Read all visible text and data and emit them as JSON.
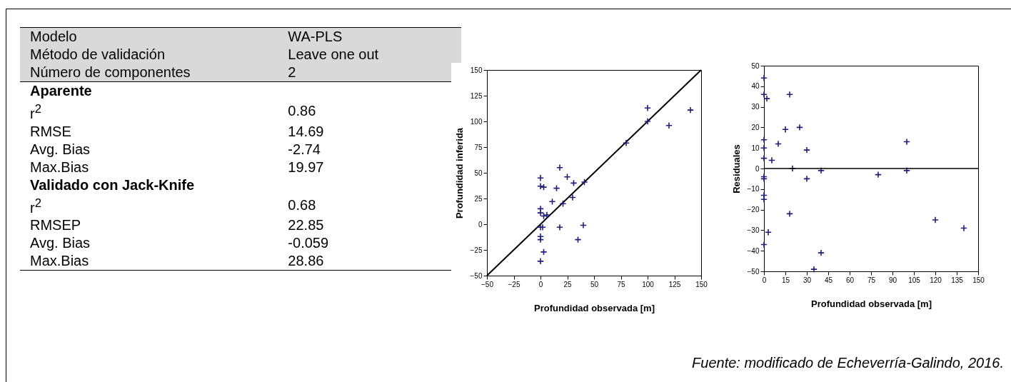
{
  "chart_data": [
    {
      "type": "other",
      "categories": [
        "Modelo",
        "Método de validación",
        "Número de componentes",
        "Aparente",
        "r$^{2}$",
        "RMSE",
        "Avg. Bias",
        "Max.Bias",
        "Validado con Jack-Knife",
        "r$^{2}$",
        "RMSEP",
        "Avg. Bias",
        "Max.Bias"
      ],
      "value_labels": [
        "WA-PLS",
        "Leave one out",
        "2",
        null,
        "0.86",
        "14.69",
        "-2.74",
        "19.97",
        null,
        "0.68",
        "22.85",
        "-0.059",
        "28.86"
      ]
    },
    {
      "type": "scatter",
      "xlabel": "Profundidad observada [m]",
      "ylabel": "Profundidad inferida",
      "xlim": [
        -50,
        150
      ],
      "ylim": [
        -50,
        150
      ],
      "xticks": [
        -50,
        -25,
        0,
        25,
        50,
        75,
        100,
        125,
        150
      ],
      "yticks": [
        -50,
        -25,
        0,
        25,
        50,
        75,
        100,
        125,
        150
      ],
      "marker": "cross",
      "series": [
        {
          "type": "line",
          "color": "#000000",
          "marker": "none",
          "x": [
            -50,
            150
          ],
          "values": [
            -50,
            150
          ]
        },
        {
          "color": "#1f1f7a",
          "x": [
            0,
            0,
            3,
            0,
            0,
            3,
            6,
            0,
            2,
            0,
            0,
            3,
            0,
            11,
            15,
            18,
            21,
            25,
            31,
            30,
            41,
            18,
            40,
            35,
            80,
            100,
            100,
            120,
            140
          ],
          "values": [
            45,
            37,
            36,
            15,
            11,
            8,
            9,
            -3,
            -3,
            -12,
            -15,
            -27,
            -36,
            22,
            35,
            55,
            20,
            46,
            40,
            26,
            41,
            -3,
            -1,
            -15,
            79,
            113,
            100,
            96,
            111
          ]
        }
      ]
    },
    {
      "type": "scatter",
      "xlabel": "Profundidad observada [m]",
      "ylabel": "Residuales",
      "xlim": [
        0,
        150
      ],
      "ylim": [
        -50,
        50
      ],
      "xticks": [
        0,
        15,
        30,
        45,
        60,
        75,
        90,
        105,
        120,
        135,
        150
      ],
      "yticks": [
        -50,
        -40,
        -30,
        -20,
        -10,
        0,
        10,
        20,
        30,
        40,
        50
      ],
      "marker": "cross",
      "ref_lines": [
        {
          "axis": "y",
          "value": 0,
          "color": "#000000"
        }
      ],
      "annotations": [
        "Fuente: modificado de Echeverría-Galindo, 2016."
      ],
      "series": [
        {
          "color": "#1f1f7a",
          "x": [
            0,
            0,
            2,
            0,
            0,
            0,
            5.5,
            10,
            15,
            18,
            25,
            30,
            20,
            40,
            30,
            0,
            0,
            0,
            0,
            18,
            3,
            0,
            40,
            35,
            80,
            100,
            100,
            120,
            140
          ],
          "values": [
            44,
            36,
            34,
            14,
            10,
            5,
            4,
            12,
            19,
            36,
            20,
            9,
            0,
            -1,
            -5,
            -4,
            -5,
            -13,
            -15,
            -22,
            -31,
            -37,
            -41,
            -49,
            -3,
            13,
            -1,
            -25,
            -29
          ]
        }
      ]
    }
  ]
}
